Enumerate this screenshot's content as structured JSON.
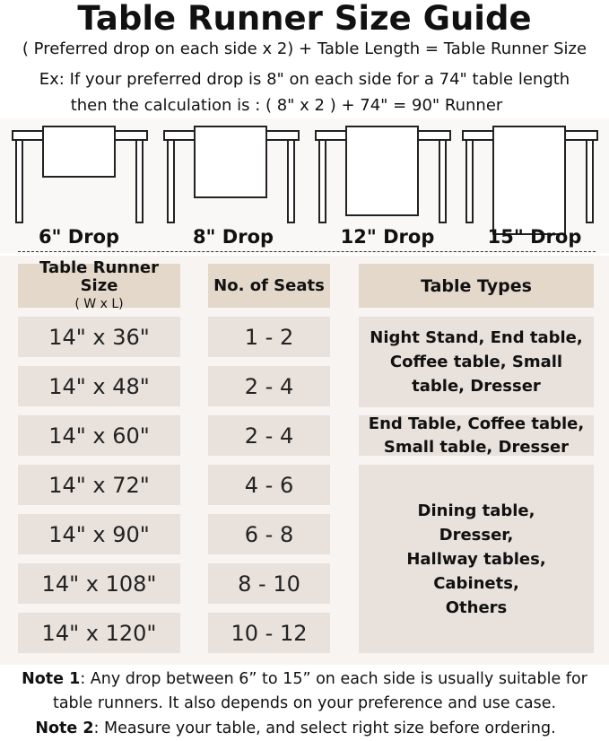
{
  "title": "Table Runner Size Guide",
  "formula": "( Preferred drop on each side x 2) + Table Length = Table Runner Size",
  "example_line1": "Ex: If your preferred drop is 8\" on each side for a 74\" table length",
  "example_line2": "then the calculation is : ( 8\" x 2 ) + 74\" = 90\" Runner",
  "drops": [
    "6\" Drop",
    "8\" Drop",
    "12\" Drop",
    "15\" Drop"
  ],
  "table": {
    "headers": {
      "size": "Table Runner Size",
      "size_sub": "( W x L)",
      "seats": "No. of Seats",
      "types": "Table Types"
    },
    "rows": [
      {
        "size": "14\" x 36\"",
        "seats": "1 - 2"
      },
      {
        "size": "14\" x 48\"",
        "seats": "2 - 4"
      },
      {
        "size": "14\" x 60\"",
        "seats": "2 - 4"
      },
      {
        "size": "14\" x 72\"",
        "seats": "4 - 6"
      },
      {
        "size": "14\" x 90\"",
        "seats": "6 - 8"
      },
      {
        "size": "14\" x 108\"",
        "seats": "8 - 10"
      },
      {
        "size": "14\" x 120\"",
        "seats": "10 - 12"
      }
    ],
    "types": [
      "Night Stand, End table, Coffee table, Small table, Dresser",
      "End Table, Coffee table, Small table, Dresser",
      "Dining table, Dresser, Hallway tables, Cabinets, Others"
    ]
  },
  "notes": {
    "note1_label": "Note 1",
    "note1_text": ": Any drop between 6” to 15” on each side is usually suitable for",
    "note1_text2": "table runners. It also depends on your preference and use case.",
    "note2_label": "Note 2",
    "note2_text": ": Measure your table, and select right size before ordering."
  },
  "colors": {
    "header_cell": "#e4d8cb",
    "body_cell": "#e8e1dc",
    "panel": "#f8f4f1"
  }
}
